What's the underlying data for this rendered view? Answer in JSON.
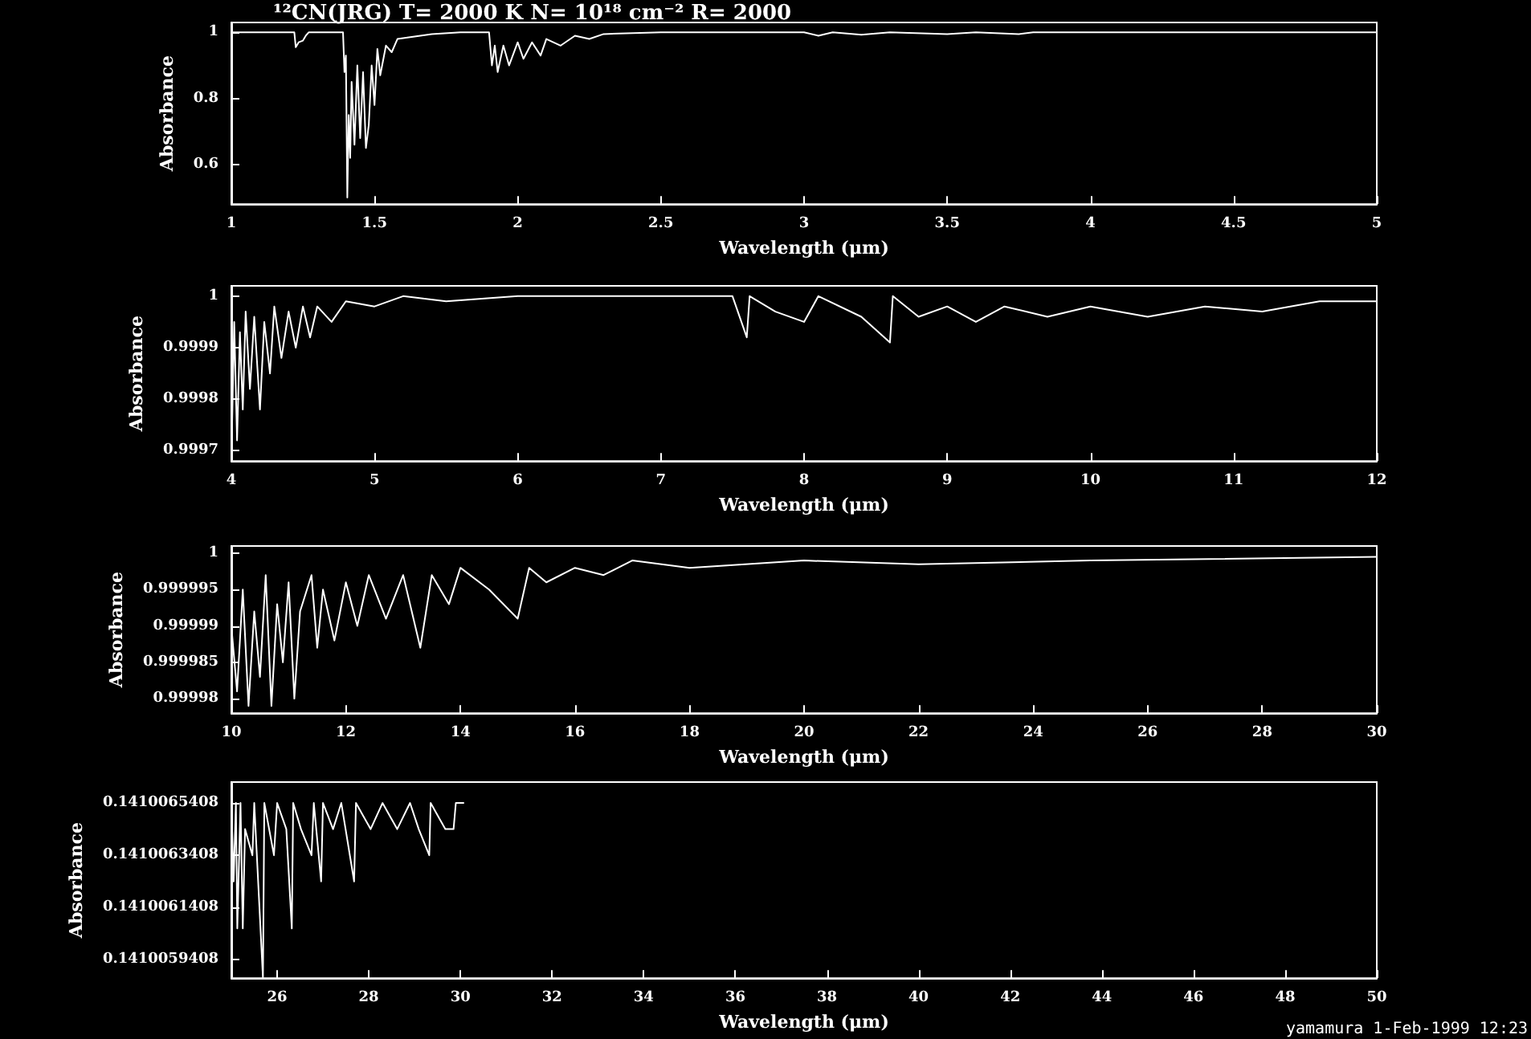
{
  "chart_data": [
    {
      "type": "line",
      "title": "¹²CN(JRG) T= 2000 K N= 10¹⁸ cm⁻² R= 2000",
      "xlabel": "Wavelength (μm)",
      "ylabel": "Absorbance",
      "xlim": [
        1,
        5
      ],
      "xticks": [
        1,
        1.5,
        2,
        2.5,
        3,
        3.5,
        4,
        4.5,
        5
      ],
      "ylim": [
        0.48,
        1.03
      ],
      "yticks": [
        0.6,
        0.8,
        1
      ],
      "series": [
        {
          "color": "#ffffff",
          "x": [
            1.0,
            1.22,
            1.225,
            1.235,
            1.25,
            1.26,
            1.27,
            1.39,
            1.395,
            1.4,
            1.405,
            1.41,
            1.415,
            1.42,
            1.43,
            1.44,
            1.45,
            1.46,
            1.47,
            1.48,
            1.49,
            1.5,
            1.51,
            1.52,
            1.54,
            1.56,
            1.58,
            1.62,
            1.7,
            1.8,
            1.9,
            1.91,
            1.92,
            1.93,
            1.95,
            1.97,
            2.0,
            2.02,
            2.05,
            2.08,
            2.1,
            2.15,
            2.2,
            2.25,
            2.3,
            2.5,
            3.0,
            3.05,
            3.1,
            3.2,
            3.3,
            3.5,
            3.6,
            3.75,
            3.8,
            5.0
          ],
          "values": [
            1.0,
            1.0,
            0.955,
            0.97,
            0.975,
            0.99,
            1.0,
            1.0,
            0.88,
            0.93,
            0.5,
            0.75,
            0.62,
            0.85,
            0.66,
            0.9,
            0.68,
            0.88,
            0.65,
            0.72,
            0.9,
            0.78,
            0.95,
            0.87,
            0.96,
            0.94,
            0.98,
            0.985,
            0.995,
            1.0,
            1.0,
            0.9,
            0.96,
            0.88,
            0.96,
            0.9,
            0.97,
            0.92,
            0.97,
            0.93,
            0.98,
            0.96,
            0.99,
            0.98,
            0.995,
            1.0,
            1.0,
            0.99,
            1.0,
            0.993,
            1.0,
            0.995,
            1.0,
            0.995,
            1.0,
            1.0
          ]
        }
      ]
    },
    {
      "type": "line",
      "xlabel": "Wavelength (μm)",
      "ylabel": "Absorbance",
      "xlim": [
        4,
        12
      ],
      "xticks": [
        4,
        5,
        6,
        7,
        8,
        9,
        10,
        11,
        12
      ],
      "ylim": [
        0.99968,
        1.00002
      ],
      "yticks": [
        0.9997,
        0.9998,
        0.9999,
        1
      ],
      "series": [
        {
          "color": "#ffffff",
          "x": [
            4.0,
            4.02,
            4.04,
            4.06,
            4.08,
            4.1,
            4.13,
            4.16,
            4.2,
            4.23,
            4.27,
            4.3,
            4.35,
            4.4,
            4.45,
            4.5,
            4.55,
            4.6,
            4.7,
            4.8,
            5.0,
            5.2,
            5.5,
            6.0,
            7.5,
            7.6,
            7.62,
            7.8,
            8.0,
            8.1,
            8.4,
            8.6,
            8.62,
            8.8,
            9.0,
            9.2,
            9.4,
            9.7,
            10.0,
            10.4,
            10.8,
            11.2,
            11.6,
            12.0
          ],
          "values": [
            0.99968,
            0.99995,
            0.99972,
            0.99993,
            0.99978,
            0.99997,
            0.99982,
            0.99996,
            0.99978,
            0.99995,
            0.99985,
            0.99998,
            0.99988,
            0.99997,
            0.9999,
            0.99998,
            0.99992,
            0.99998,
            0.99995,
            0.99999,
            0.99998,
            1.0,
            0.99999,
            1.0,
            1.0,
            0.99992,
            1.0,
            0.99997,
            0.99995,
            1.0,
            0.99996,
            0.99991,
            1.0,
            0.99996,
            0.99998,
            0.99995,
            0.99998,
            0.99996,
            0.99998,
            0.99996,
            0.99998,
            0.99997,
            0.99999,
            0.99999
          ]
        }
      ]
    },
    {
      "type": "line",
      "xlabel": "Wavelength (μm)",
      "ylabel": "Absorbance",
      "xlim": [
        10,
        30
      ],
      "xticks": [
        10,
        12,
        14,
        16,
        18,
        20,
        22,
        24,
        26,
        28,
        30
      ],
      "ylim": [
        0.999978,
        1.000001
      ],
      "yticks": [
        0.99998,
        0.999985,
        0.99999,
        0.999995,
        1
      ],
      "series": [
        {
          "color": "#ffffff",
          "x": [
            10.0,
            10.1,
            10.2,
            10.3,
            10.4,
            10.5,
            10.6,
            10.7,
            10.8,
            10.9,
            11.0,
            11.1,
            11.2,
            11.4,
            11.5,
            11.6,
            11.8,
            12.0,
            12.2,
            12.4,
            12.7,
            13.0,
            13.3,
            13.5,
            13.8,
            14.0,
            14.5,
            15.0,
            15.2,
            15.5,
            16.0,
            16.5,
            17.0,
            18.0,
            20.0,
            22.0,
            25.0,
            30.0
          ],
          "values": [
            0.99999,
            0.999981,
            0.999995,
            0.999979,
            0.999992,
            0.999983,
            0.999997,
            0.999979,
            0.999993,
            0.999985,
            0.999996,
            0.99998,
            0.999992,
            0.999997,
            0.999987,
            0.999995,
            0.999988,
            0.999996,
            0.99999,
            0.999997,
            0.999991,
            0.999997,
            0.999987,
            0.999997,
            0.999993,
            0.999998,
            0.999995,
            0.999991,
            0.999998,
            0.999996,
            0.999998,
            0.999997,
            0.999999,
            0.999998,
            0.999999,
            0.9999985,
            0.999999,
            0.9999995
          ]
        }
      ]
    },
    {
      "type": "line",
      "xlabel": "Wavelength (μm)",
      "ylabel": "Absorbance",
      "xlim": [
        25,
        50
      ],
      "xticks": [
        26,
        28,
        30,
        32,
        34,
        36,
        38,
        40,
        42,
        44,
        46,
        48,
        50
      ],
      "ylim": [
        0.14100587,
        0.14100662
      ],
      "yticks": [
        0.1410059408,
        0.1410061408,
        0.1410063408,
        0.1410065408
      ],
      "annotations": [
        "yamamura 1-Feb-1999 12:23"
      ],
      "series": [
        {
          "color": "#ffffff",
          "x": [
            25.0,
            25.05,
            25.1,
            25.13,
            25.2,
            25.25,
            25.3,
            25.46,
            25.5,
            25.69,
            25.72,
            25.93,
            26.0,
            26.2,
            26.32,
            26.35,
            26.52,
            26.75,
            26.8,
            26.96,
            27.0,
            27.22,
            27.4,
            27.68,
            27.72,
            28.04,
            28.3,
            28.62,
            28.9,
            29.09,
            29.32,
            29.35,
            29.67,
            29.85,
            29.9,
            30.08
          ],
          "values": [
            0.14100654,
            0.14100624,
            0.14100654,
            0.14100606,
            0.14100654,
            0.14100606,
            0.14100644,
            0.14100634,
            0.14100654,
            0.14100587,
            0.14100654,
            0.14100634,
            0.14100654,
            0.14100644,
            0.14100606,
            0.14100654,
            0.14100644,
            0.14100634,
            0.14100654,
            0.14100624,
            0.14100654,
            0.14100644,
            0.14100654,
            0.14100624,
            0.14100654,
            0.14100644,
            0.14100654,
            0.14100644,
            0.14100654,
            0.14100644,
            0.14100634,
            0.14100654,
            0.14100644,
            0.14100644,
            0.14100654,
            0.14100654
          ]
        }
      ]
    }
  ]
}
